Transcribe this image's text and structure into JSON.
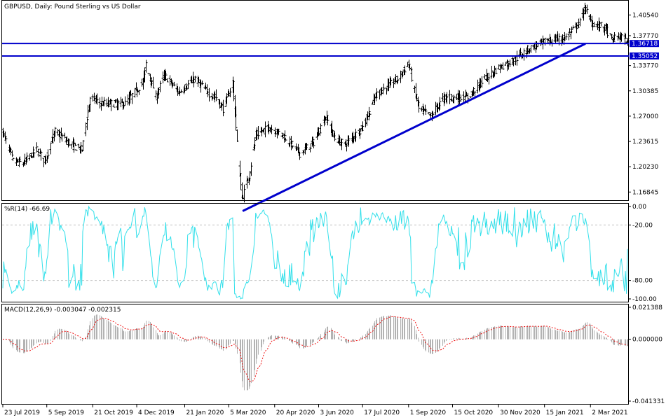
{
  "window": {
    "main_title": "GBPUSD, Daily:  Pound Sterling vs US Dollar",
    "wpr_title": "%R(14) -66.69",
    "macd_title": "MACD(12,26,9) -0.003047 -0.002315"
  },
  "colors": {
    "bars": "#000000",
    "levels": "#0000cc",
    "wpr_line": "#33e0ea",
    "macd_hist": "#b3b3b3",
    "macd_signal": "#ee1111"
  },
  "chart_data": [
    {
      "type": "candlestick",
      "title": "GBPUSD, Daily:  Pound Sterling vs US Dollar",
      "price_ticks": [
        "1.40540",
        "1.37770",
        "1.35052",
        "1.33770",
        "1.30385",
        "1.27000",
        "1.23615",
        "1.20230",
        "1.16845"
      ],
      "ylim": [
        1.1575,
        1.4245
      ],
      "x_labels": [
        "23 Jul 2019",
        "5 Sep 2019",
        "21 Oct 2019",
        "4 Dec 2019",
        "21 Jan 2020",
        "5 Mar 2020",
        "20 Apr 2020",
        "3 Jun 2020",
        "17 Jul 2020",
        "1 Sep 2020",
        "15 Oct 2020",
        "30 Nov 2020",
        "15 Jan 2021",
        "2 Mar 2021"
      ],
      "horizontal_levels": [
        {
          "label": "1.36718",
          "value": 1.36718
        },
        {
          "label": "1.35052",
          "value": 1.35052
        }
      ],
      "trendline": {
        "from": {
          "date": "19 Mar 2020",
          "price": 1.143
        },
        "to": {
          "date": "25 Feb 2021",
          "price": 1.367
        }
      },
      "close_anchors": [
        {
          "date": "23 Jul 2019",
          "price": 1.248
        },
        {
          "date": "2 Aug 2019",
          "price": 1.21
        },
        {
          "date": "12 Aug 2019",
          "price": 1.207
        },
        {
          "date": "26 Aug 2019",
          "price": 1.225
        },
        {
          "date": "3 Sep 2019",
          "price": 1.21
        },
        {
          "date": "13 Sep 2019",
          "price": 1.25
        },
        {
          "date": "1 Oct 2019",
          "price": 1.23
        },
        {
          "date": "10 Oct 2019",
          "price": 1.225
        },
        {
          "date": "18 Oct 2019",
          "price": 1.295
        },
        {
          "date": "29 Oct 2019",
          "price": 1.287
        },
        {
          "date": "22 Nov 2019",
          "price": 1.287
        },
        {
          "date": "10 Dec 2019",
          "price": 1.315
        },
        {
          "date": "13 Dec 2019",
          "price": 1.34
        },
        {
          "date": "23 Dec 2019",
          "price": 1.295
        },
        {
          "date": "31 Dec 2019",
          "price": 1.325
        },
        {
          "date": "15 Jan 2020",
          "price": 1.302
        },
        {
          "date": "31 Jan 2020",
          "price": 1.32
        },
        {
          "date": "14 Feb 2020",
          "price": 1.3
        },
        {
          "date": "21 Feb 2020",
          "price": 1.295
        },
        {
          "date": "28 Feb 2020",
          "price": 1.28
        },
        {
          "date": "9 Mar 2020",
          "price": 1.315
        },
        {
          "date": "13 Mar 2020",
          "price": 1.235
        },
        {
          "date": "18 Mar 2020",
          "price": 1.16
        },
        {
          "date": "25 Mar 2020",
          "price": 1.19
        },
        {
          "date": "1 Apr 2020",
          "price": 1.245
        },
        {
          "date": "14 Apr 2020",
          "price": 1.255
        },
        {
          "date": "28 Apr 2020",
          "price": 1.245
        },
        {
          "date": "15 May 2020",
          "price": 1.22
        },
        {
          "date": "29 May 2020",
          "price": 1.235
        },
        {
          "date": "10 Jun 2020",
          "price": 1.27
        },
        {
          "date": "19 Jun 2020",
          "price": 1.24
        },
        {
          "date": "29 Jun 2020",
          "price": 1.232
        },
        {
          "date": "17 Jul 2020",
          "price": 1.255
        },
        {
          "date": "31 Jul 2020",
          "price": 1.3
        },
        {
          "date": "21 Aug 2020",
          "price": 1.32
        },
        {
          "date": "1 Sep 2020",
          "price": 1.34
        },
        {
          "date": "11 Sep 2020",
          "price": 1.28
        },
        {
          "date": "23 Sep 2020",
          "price": 1.27
        },
        {
          "date": "6 Oct 2020",
          "price": 1.295
        },
        {
          "date": "16 Oct 2020",
          "price": 1.295
        },
        {
          "date": "30 Oct 2020",
          "price": 1.295
        },
        {
          "date": "16 Nov 2020",
          "price": 1.32
        },
        {
          "date": "30 Nov 2020",
          "price": 1.335
        },
        {
          "date": "15 Dec 2020",
          "price": 1.345
        },
        {
          "date": "30 Dec 2020",
          "price": 1.36
        },
        {
          "date": "15 Jan 2021",
          "price": 1.37
        },
        {
          "date": "5 Feb 2021",
          "price": 1.375
        },
        {
          "date": "19 Feb 2021",
          "price": 1.395
        },
        {
          "date": "24 Feb 2021",
          "price": 1.415
        },
        {
          "date": "3 Mar 2021",
          "price": 1.395
        },
        {
          "date": "17 Mar 2021",
          "price": 1.388
        },
        {
          "date": "23 Mar 2021",
          "price": 1.372
        },
        {
          "date": "31 Mar 2021",
          "price": 1.377
        },
        {
          "date": "6 Apr 2021",
          "price": 1.371
        }
      ]
    },
    {
      "type": "line",
      "title": "%R(14) -66.69",
      "ylim": [
        -100,
        0
      ],
      "y_ticks": [
        "0.00",
        "-20.00",
        "-80.00",
        "-100.00"
      ],
      "levels": [
        -20,
        -80
      ]
    },
    {
      "type": "bar",
      "title": "MACD(12,26,9) -0.003047 -0.002315",
      "ylim": [
        -0.041331,
        0.021388
      ],
      "y_ticks": [
        "0.021388",
        "0.000000",
        "-0.041331"
      ],
      "macd": -0.003047,
      "signal": -0.002315
    }
  ]
}
